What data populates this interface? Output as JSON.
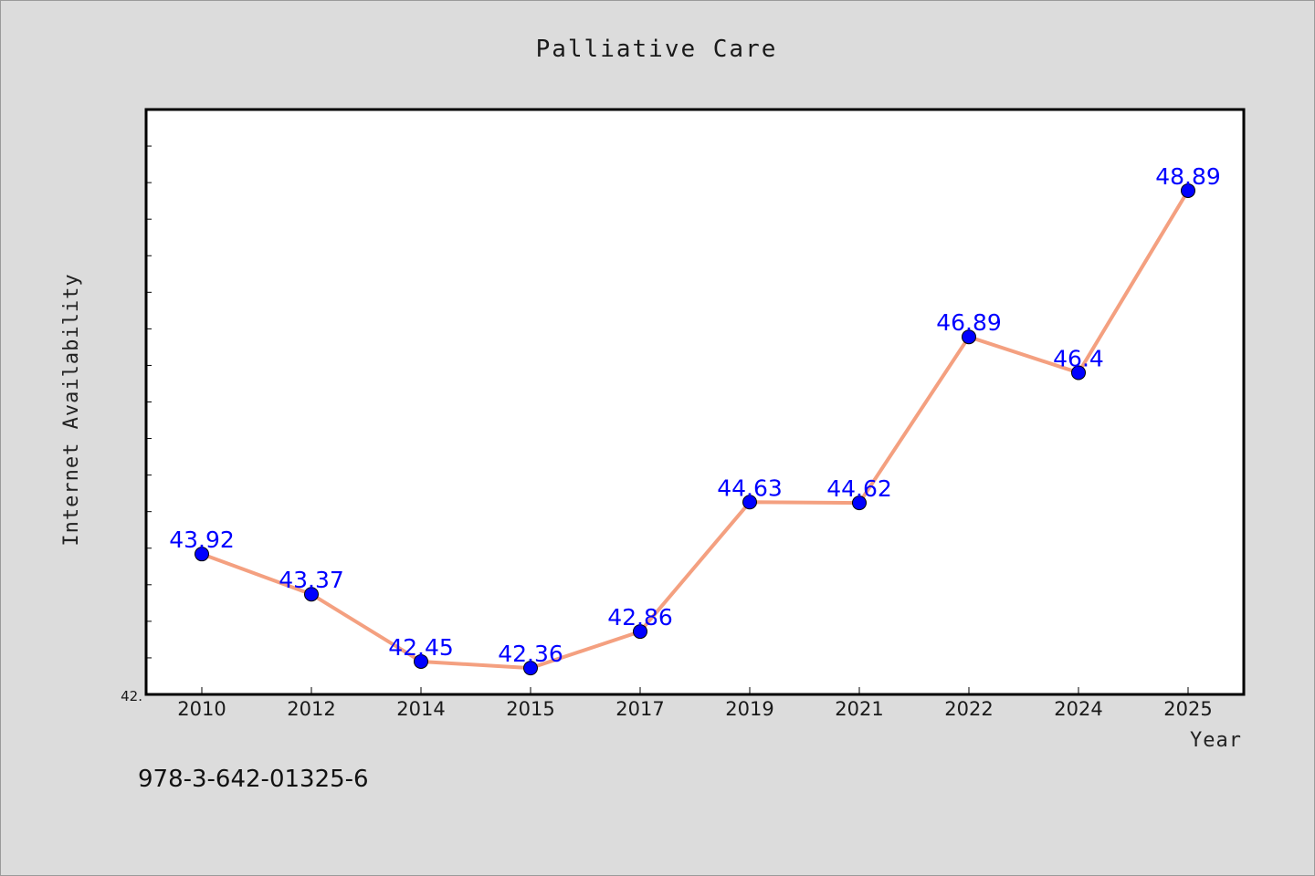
{
  "chart_data": {
    "type": "line",
    "title": "Palliative Care",
    "xlabel": "Year",
    "ylabel": "Internet Availability",
    "categories": [
      "2010",
      "2012",
      "2014",
      "2015",
      "2017",
      "2019",
      "2021",
      "2022",
      "2024",
      "2025"
    ],
    "series": [
      {
        "values": [
          43.92,
          43.37,
          42.45,
          42.36,
          42.86,
          44.63,
          44.62,
          46.89,
          46.4,
          48.89
        ],
        "data_labels": [
          "43.92",
          "43.37",
          "42.45",
          "42.36",
          "42.86",
          "44.63",
          "44.62",
          "46.89",
          "46.4",
          "48.89"
        ],
        "line_color": "#f4a080",
        "marker_color": "#0000ff"
      }
    ],
    "ylim": [
      42.0,
      50.0
    ],
    "y_tick_labels": [
      "42."
    ],
    "grid": false,
    "legend": "none"
  },
  "footnote": "978-3-642-01325-6",
  "colors": {
    "background": "#dcdcdc",
    "plot_area": "#ffffff",
    "line": "#f4a080",
    "marker": "#0000ff",
    "data_label": "#0000ff"
  }
}
